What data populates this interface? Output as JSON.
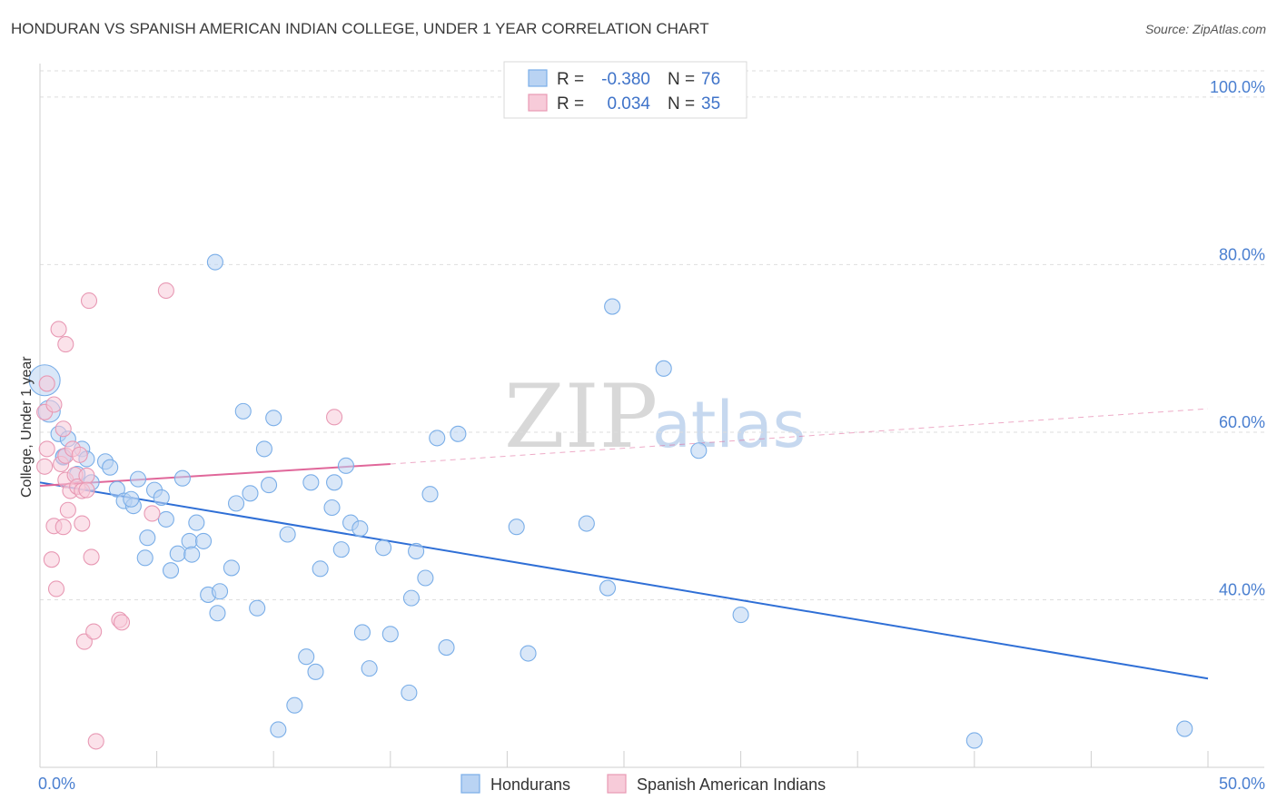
{
  "header": {
    "title": "HONDURAN VS SPANISH AMERICAN INDIAN COLLEGE, UNDER 1 YEAR CORRELATION CHART",
    "source": "Source: ZipAtlas.com"
  },
  "watermark": {
    "zip": "ZIP",
    "atlas": "atlas"
  },
  "chart_data": {
    "type": "scatter",
    "title": "HONDURAN VS SPANISH AMERICAN INDIAN COLLEGE, UNDER 1 YEAR CORRELATION CHART",
    "xlabel": "",
    "ylabel": "College, Under 1 year",
    "xlim": [
      0,
      50
    ],
    "ylim": [
      20,
      104
    ],
    "x_tick_labels": {
      "min": "0.0%",
      "max": "50.0%"
    },
    "y_ticks": [
      {
        "value": 40,
        "label": "40.0%"
      },
      {
        "value": 60,
        "label": "60.0%"
      },
      {
        "value": 80,
        "label": "80.0%"
      },
      {
        "value": 100,
        "label": "100.0%"
      }
    ],
    "grid": true,
    "legend": {
      "position": "top-center",
      "rows": [
        {
          "r_label": "R =",
          "r_value": "-0.380",
          "n_label": "N =",
          "n_value": "76"
        },
        {
          "r_label": "R =",
          "r_value": "0.034",
          "n_label": "N =",
          "n_value": "35"
        }
      ]
    },
    "series": [
      {
        "name": "Hondurans",
        "color": "#7aaee8",
        "fill": "#b9d3f3",
        "trend": {
          "x": [
            0,
            50
          ],
          "y": [
            54.0,
            30.6
          ],
          "color": "#2f6fd6",
          "style": "solid"
        },
        "points": [
          [
            0.2,
            66.2
          ],
          [
            0.4,
            62.5
          ],
          [
            0.8,
            59.8
          ],
          [
            1.2,
            59.2
          ],
          [
            1.0,
            57.0
          ],
          [
            1.8,
            58.0
          ],
          [
            1.6,
            55.0
          ],
          [
            2.0,
            56.8
          ],
          [
            2.2,
            54.0
          ],
          [
            2.8,
            56.5
          ],
          [
            3.0,
            55.8
          ],
          [
            3.3,
            53.2
          ],
          [
            3.6,
            51.8
          ],
          [
            4.0,
            51.2
          ],
          [
            3.9,
            52.0
          ],
          [
            4.2,
            54.4
          ],
          [
            4.5,
            45.0
          ],
          [
            4.6,
            47.4
          ],
          [
            4.9,
            53.1
          ],
          [
            5.2,
            52.2
          ],
          [
            5.4,
            49.6
          ],
          [
            5.6,
            43.5
          ],
          [
            5.9,
            45.5
          ],
          [
            6.1,
            54.5
          ],
          [
            6.4,
            47.0
          ],
          [
            6.5,
            45.4
          ],
          [
            6.7,
            49.2
          ],
          [
            7.0,
            47.0
          ],
          [
            7.2,
            40.6
          ],
          [
            7.6,
            38.4
          ],
          [
            7.7,
            41.0
          ],
          [
            7.5,
            80.3
          ],
          [
            8.2,
            43.8
          ],
          [
            8.4,
            51.5
          ],
          [
            8.7,
            62.5
          ],
          [
            9.0,
            52.7
          ],
          [
            9.3,
            39.0
          ],
          [
            9.6,
            58.0
          ],
          [
            9.8,
            53.7
          ],
          [
            10.0,
            61.7
          ],
          [
            10.2,
            24.5
          ],
          [
            10.6,
            47.8
          ],
          [
            10.9,
            27.4
          ],
          [
            11.4,
            33.2
          ],
          [
            11.6,
            54.0
          ],
          [
            11.8,
            31.4
          ],
          [
            12.0,
            43.7
          ],
          [
            12.5,
            51.0
          ],
          [
            12.6,
            54.0
          ],
          [
            12.9,
            46.0
          ],
          [
            13.1,
            56.0
          ],
          [
            13.3,
            49.2
          ],
          [
            13.7,
            48.5
          ],
          [
            13.8,
            36.1
          ],
          [
            14.1,
            31.8
          ],
          [
            14.7,
            46.2
          ],
          [
            15.0,
            35.9
          ],
          [
            15.8,
            28.9
          ],
          [
            15.9,
            40.2
          ],
          [
            16.1,
            45.8
          ],
          [
            16.5,
            42.6
          ],
          [
            16.7,
            52.6
          ],
          [
            17.0,
            59.3
          ],
          [
            17.4,
            34.3
          ],
          [
            17.9,
            59.8
          ],
          [
            20.4,
            48.7
          ],
          [
            20.9,
            33.6
          ],
          [
            23.4,
            49.1
          ],
          [
            24.3,
            41.4
          ],
          [
            24.5,
            75.0
          ],
          [
            26.7,
            67.6
          ],
          [
            28.2,
            57.8
          ],
          [
            30.0,
            38.2
          ],
          [
            40.0,
            23.2
          ],
          [
            49.0,
            24.6
          ],
          [
            1.0,
            57.1
          ]
        ]
      },
      {
        "name": "Spanish American Indians",
        "color": "#e899b4",
        "fill": "#f7cbd9",
        "trend": {
          "x": [
            0,
            15
          ],
          "y": [
            53.6,
            56.2
          ],
          "x_dashed": [
            15,
            50
          ],
          "y_dashed": [
            56.2,
            62.8
          ],
          "color": "#e0679a"
        },
        "points": [
          [
            0.2,
            62.4
          ],
          [
            0.3,
            65.8
          ],
          [
            0.3,
            58.0
          ],
          [
            0.2,
            55.9
          ],
          [
            0.5,
            44.8
          ],
          [
            0.6,
            63.3
          ],
          [
            0.6,
            48.8
          ],
          [
            0.7,
            41.3
          ],
          [
            0.8,
            72.3
          ],
          [
            0.9,
            56.2
          ],
          [
            1.0,
            48.7
          ],
          [
            1.0,
            60.4
          ],
          [
            1.1,
            54.3
          ],
          [
            1.1,
            57.2
          ],
          [
            1.1,
            70.5
          ],
          [
            1.2,
            50.7
          ],
          [
            1.3,
            53.0
          ],
          [
            1.4,
            58.0
          ],
          [
            1.5,
            54.9
          ],
          [
            1.6,
            53.5
          ],
          [
            1.7,
            57.3
          ],
          [
            1.8,
            49.1
          ],
          [
            1.8,
            53.0
          ],
          [
            1.9,
            35.0
          ],
          [
            2.0,
            54.8
          ],
          [
            2.1,
            75.7
          ],
          [
            2.2,
            45.1
          ],
          [
            2.3,
            36.2
          ],
          [
            2.4,
            23.1
          ],
          [
            3.4,
            37.6
          ],
          [
            3.5,
            37.3
          ],
          [
            4.8,
            50.3
          ],
          [
            5.4,
            76.9
          ],
          [
            12.6,
            61.8
          ],
          [
            2.0,
            53.1
          ]
        ]
      }
    ]
  },
  "bottom_legend": {
    "items": [
      {
        "label": "Hondurans"
      },
      {
        "label": "Spanish American Indians"
      }
    ]
  }
}
